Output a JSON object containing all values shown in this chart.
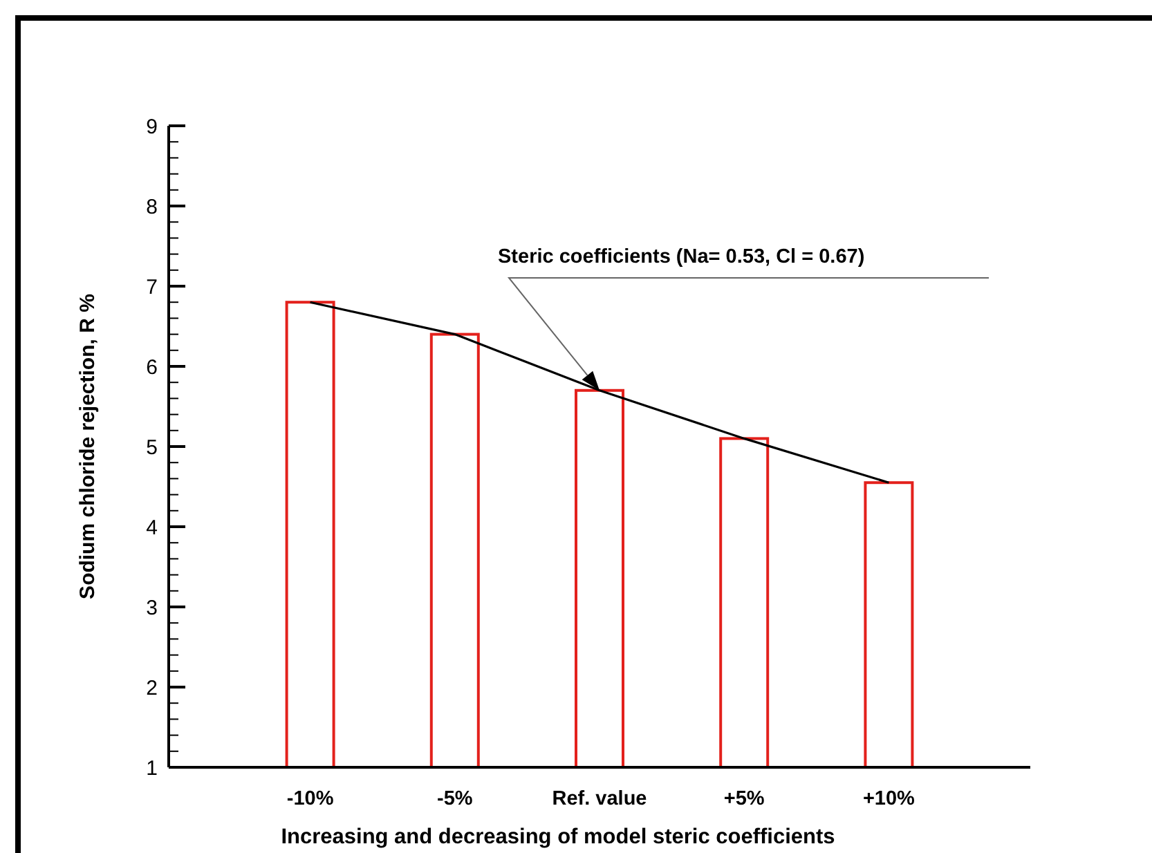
{
  "chart_data": {
    "type": "bar",
    "xlabel": "Increasing and decreasing of model steric coefficients",
    "ylabel": "Sodium chloride rejection, R  %",
    "categories": [
      "-10%",
      "-5%",
      "Ref. value",
      "+5%",
      "+10%"
    ],
    "series": [
      {
        "color": "#e3211c",
        "values": [
          6.8,
          6.4,
          5.7,
          5.1,
          4.55
        ]
      },
      {
        "type": "line",
        "color": "#000000",
        "values": [
          6.8,
          6.4,
          5.7,
          5.1,
          4.55
        ]
      }
    ],
    "ylim": [
      1,
      9
    ],
    "yticks": [
      1,
      {
        "value": 1.2,
        "label": null
      },
      {
        "value": 1.4,
        "label": null
      },
      {
        "value": 1.6,
        "label": null
      },
      {
        "value": 1.8,
        "label": null
      },
      2,
      {
        "value": 2.2,
        "label": null
      },
      {
        "value": 2.4,
        "label": null
      },
      {
        "value": 2.6,
        "label": null
      },
      {
        "value": 2.8,
        "label": null
      },
      3,
      {
        "value": 3.2,
        "label": null
      },
      {
        "value": 3.4,
        "label": null
      },
      {
        "value": 3.6,
        "label": null
      },
      {
        "value": 3.8,
        "label": null
      },
      4,
      {
        "value": 4.2,
        "label": null
      },
      {
        "value": 4.4,
        "label": null
      },
      {
        "value": 4.6,
        "label": null
      },
      {
        "value": 4.8,
        "label": null
      },
      5,
      {
        "value": 5.2,
        "label": null
      },
      {
        "value": 5.4,
        "label": null
      },
      {
        "value": 5.6,
        "label": null
      },
      {
        "value": 5.8,
        "label": null
      },
      6,
      {
        "value": 6.2,
        "label": null
      },
      {
        "value": 6.4,
        "label": null
      },
      {
        "value": 6.6,
        "label": null
      },
      {
        "value": 6.8,
        "label": null
      },
      7,
      {
        "value": 7.2,
        "label": null
      },
      {
        "value": 7.4,
        "label": null
      },
      {
        "value": 7.6,
        "label": null
      },
      {
        "value": 7.8,
        "label": null
      },
      8,
      {
        "value": 8.2,
        "label": null
      },
      {
        "value": 8.4,
        "label": null
      },
      {
        "value": 8.6,
        "label": null
      },
      {
        "value": 8.8,
        "label": null
      },
      9
    ],
    "annotations": [
      "Steric coefficients (Na= 0.53, Cl = 0.67)"
    ],
    "grid": false,
    "marker": "none",
    "line_style": "solid"
  }
}
